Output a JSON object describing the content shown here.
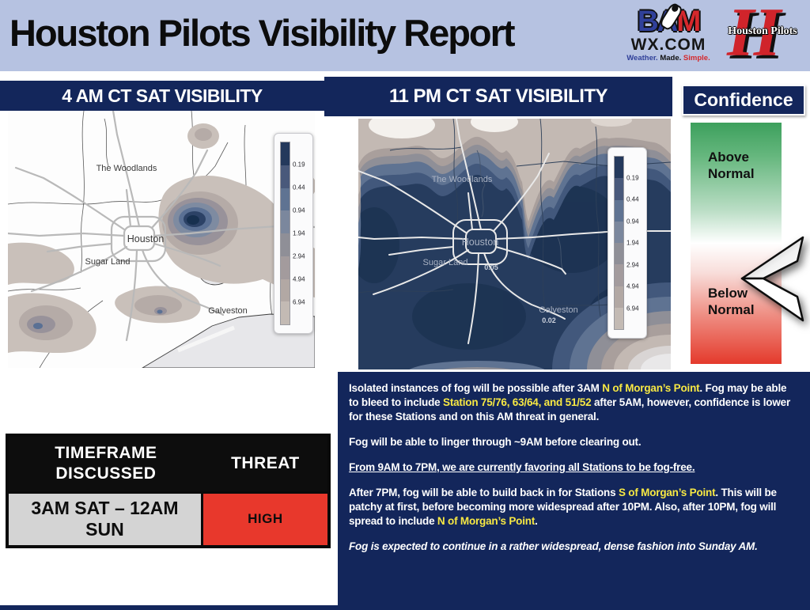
{
  "header": {
    "title": "Houston Pilots Visibility Report",
    "bamwx": {
      "letters_blue": "BA",
      "letter_red": "M",
      "domain": "WX.COM",
      "tagline": {
        "weather": "Weather.",
        "made": "Made.",
        "simple": "Simple."
      }
    },
    "houston_pilots": {
      "name": "Houston Pilots",
      "monogram": "H"
    }
  },
  "panels": {
    "left_map_title": "4 AM CT SAT VISIBILITY",
    "right_map_title": "11 PM CT SAT VISIBILITY",
    "confidence_title": "Confidence"
  },
  "confidence": {
    "above": "Above Normal",
    "below": "Below Normal"
  },
  "maps": {
    "legend_values": [
      "0.19",
      "0.44",
      "0.94",
      "1.94",
      "2.94",
      "4.94",
      "6.94"
    ],
    "legend_colors": [
      "#24395c",
      "#49597b",
      "#5f7392",
      "#7b879d",
      "#8f8f97",
      "#a39b9d",
      "#b2a8a4",
      "#c3bab4"
    ],
    "cities": [
      "The Woodlands",
      "Houston",
      "Sugar Land",
      "Galveston"
    ],
    "right_map_point_values": [
      "0.05",
      "0.02"
    ]
  },
  "table": {
    "col1_header": "TIMEFRAME DISCUSSED",
    "col2_header": "THREAT",
    "row": {
      "timeframe": "3AM SAT – 12AM SUN",
      "threat": "HIGH"
    }
  },
  "forecast": {
    "paragraphs": [
      {
        "segments": [
          {
            "t": "Isolated instances of fog will be possible after 3AM "
          },
          {
            "t": "N of Morgan’s Point",
            "s": "hl"
          },
          {
            "t": ". Fog may be able to bleed to include "
          },
          {
            "t": "Station 75/76, 63/64, and 51/52",
            "s": "hl"
          },
          {
            "t": " after 5AM, however, confidence is lower for these Stations and on this AM threat in general."
          }
        ]
      },
      {
        "segments": [
          {
            "t": "Fog will be able to linger through ~9AM before clearing out."
          }
        ]
      },
      {
        "segments": [
          {
            "t": "From 9AM to 7PM, we are currently favoring all Stations to be fog-free.",
            "s": "ul"
          }
        ]
      },
      {
        "segments": [
          {
            "t": "After 7PM, fog will be able to build back in for Stations "
          },
          {
            "t": "S of Morgan’s Point",
            "s": "hl"
          },
          {
            "t": ". This will be patchy at first, before becoming more widespread after 10PM. Also, after 10PM, fog will spread to include "
          },
          {
            "t": "N of Morgan’s Point",
            "s": "hl"
          },
          {
            "t": "."
          }
        ]
      },
      {
        "segments": [
          {
            "t": "Fog is expected to continue in a rather widespread, dense fashion into Sunday AM.",
            "s": "it"
          }
        ]
      }
    ]
  },
  "colors": {
    "header_bg": "#b6c2e1",
    "navy": "#13265b",
    "threat_high_red": "#e8382c",
    "highlight_yellow": "#f7e843",
    "confidence_green": "#3da05d",
    "confidence_red": "#e43a2c"
  }
}
